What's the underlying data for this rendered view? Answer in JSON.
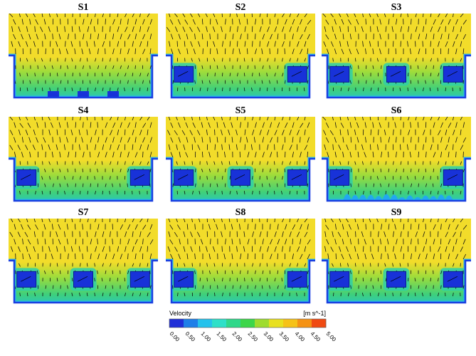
{
  "panels": [
    {
      "title": "S1",
      "blocks": [],
      "bottom_tabs": 3
    },
    {
      "title": "S2",
      "blocks": [
        0.12,
        0.88
      ]
    },
    {
      "title": "S3",
      "blocks": [
        0.12,
        0.5,
        0.88
      ]
    },
    {
      "title": "S4",
      "blocks": [
        0.12,
        0.88
      ]
    },
    {
      "title": "S5",
      "blocks": [
        0.12,
        0.5,
        0.88
      ]
    },
    {
      "title": "S6",
      "blocks": [
        0.12,
        0.88
      ],
      "rough_floor": true
    },
    {
      "title": "S7",
      "blocks": [
        0.12,
        0.5,
        0.88
      ]
    },
    {
      "title": "S8",
      "blocks": [
        0.12,
        0.88
      ]
    },
    {
      "title": "S9",
      "blocks": [
        0.12,
        0.5,
        0.88
      ]
    }
  ],
  "legend": {
    "title": "Velocity",
    "unit": "[m s^-1]",
    "ticks": [
      "0.00",
      "0.50",
      "1.00",
      "1.50",
      "2.00",
      "2.50",
      "3.00",
      "3.50",
      "4.00",
      "4.50",
      "5.00"
    ],
    "colors": [
      "#1f2fd8",
      "#1e7fe8",
      "#25c2ec",
      "#2ee0c8",
      "#2fd88a",
      "#3dd64a",
      "#9fdc2e",
      "#e8e020",
      "#f6c218",
      "#f59214",
      "#f04a12"
    ]
  },
  "colors": {
    "high_flow": "#f2dc2a",
    "mid_flow": "#9cdc3c",
    "low_flow": "#3fd07a",
    "wall": "#1a3fe0",
    "wall_edge": "#28b8f0",
    "block": "#1832d8",
    "arrow": "#111111"
  }
}
